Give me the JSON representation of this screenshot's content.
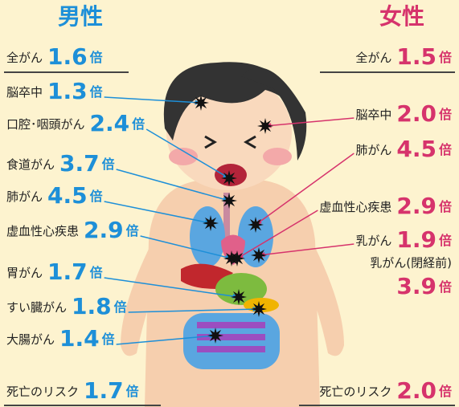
{
  "unit": "倍",
  "male": {
    "title": "男性",
    "overall": {
      "label": "全がん",
      "ratio": "1.6"
    },
    "items": [
      {
        "label": "脳卒中",
        "ratio": "1.3"
      },
      {
        "label": "口腔･咽頭がん",
        "ratio": "2.4"
      },
      {
        "label": "食道がん",
        "ratio": "3.7"
      },
      {
        "label": "肺がん",
        "ratio": "4.5"
      },
      {
        "label": "虚血性心疾患",
        "ratio": "2.9"
      },
      {
        "label": "胃がん",
        "ratio": "1.7"
      },
      {
        "label": "すい臓がん",
        "ratio": "1.8"
      },
      {
        "label": "大腸がん",
        "ratio": "1.4"
      }
    ],
    "death": {
      "label": "死亡のリスク",
      "ratio": "1.7"
    }
  },
  "female": {
    "title": "女性",
    "overall": {
      "label": "全がん",
      "ratio": "1.5"
    },
    "items": [
      {
        "label": "脳卒中",
        "ratio": "2.0"
      },
      {
        "label": "肺がん",
        "ratio": "4.5"
      },
      {
        "label": "虚血性心疾患",
        "ratio": "2.9"
      },
      {
        "label": "乳がん",
        "ratio": "1.9"
      },
      {
        "label": "乳がん(閉経前)",
        "ratio": "3.9"
      }
    ],
    "death": {
      "label": "死亡のリスク",
      "ratio": "2.0"
    }
  }
}
